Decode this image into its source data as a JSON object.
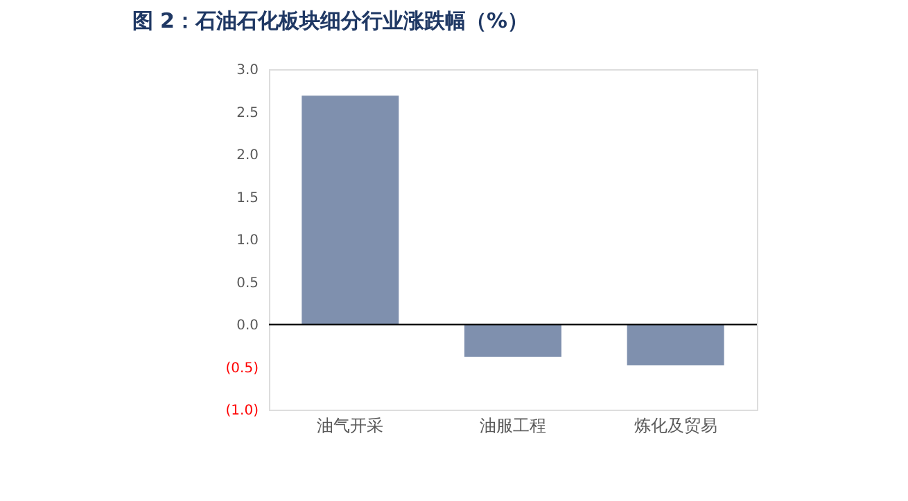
{
  "chart_data": {
    "type": "bar",
    "title": "图 2：石油石化板块细分行业涨跌幅（%）",
    "categories": [
      "油气开采",
      "油服工程",
      "炼化及贸易"
    ],
    "series": [
      {
        "color": "#7f90ae",
        "values": [
          2.69,
          -0.38,
          -0.48
        ]
      }
    ],
    "ylim": [
      -1.0,
      3.0
    ],
    "yticks": [
      {
        "value": -1.0,
        "label": "(1.0)"
      },
      {
        "value": -0.5,
        "label": "(0.5)"
      },
      {
        "value": 0,
        "label": "0.0"
      },
      {
        "value": 0.5,
        "label": "0.5"
      },
      {
        "value": 1.0,
        "label": "1.0"
      },
      {
        "value": 1.5,
        "label": "1.5"
      },
      {
        "value": 2.0,
        "label": "2.0"
      },
      {
        "value": 2.5,
        "label": "2.5"
      },
      {
        "value": 3.0,
        "label": "3.0"
      }
    ],
    "ref_lines": [
      {
        "axis": "y",
        "value": 0,
        "color": "#000000"
      }
    ],
    "grid": false
  }
}
